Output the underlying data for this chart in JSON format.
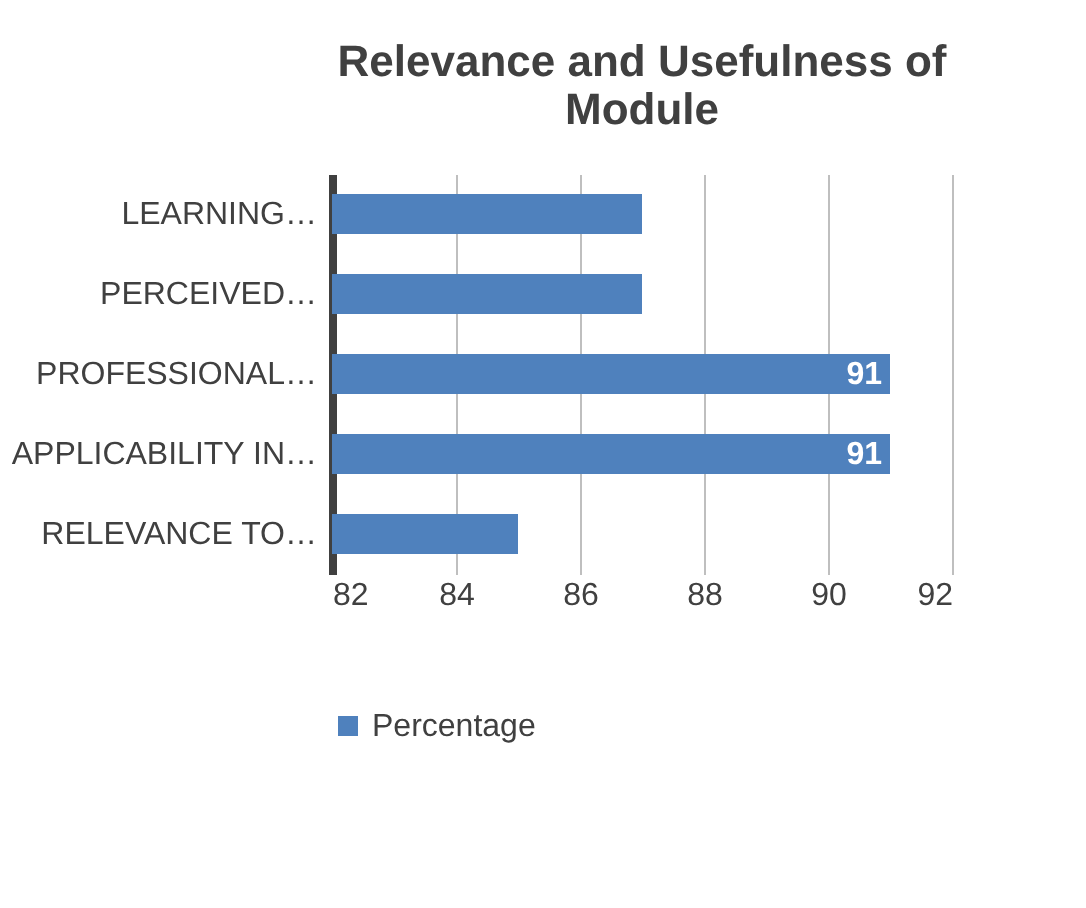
{
  "chart_data": {
    "type": "bar",
    "orientation": "horizontal",
    "title": "Relevance and Usefulness of Module",
    "categories": [
      "LEARNING…",
      "PERCEIVED…",
      "PROFESSIONAL…",
      "APPLICABILITY IN…",
      "RELEVANCE TO…"
    ],
    "series": [
      {
        "name": "Percentage",
        "color": "#4f81bd",
        "values": [
          87,
          87,
          91,
          91,
          85
        ],
        "value_labels": [
          null,
          null,
          "91",
          "91",
          null
        ]
      }
    ],
    "xlim": [
      82,
      92
    ],
    "xticks": [
      82,
      84,
      86,
      88,
      90,
      92
    ],
    "grid": "x",
    "legend": "bottom"
  }
}
